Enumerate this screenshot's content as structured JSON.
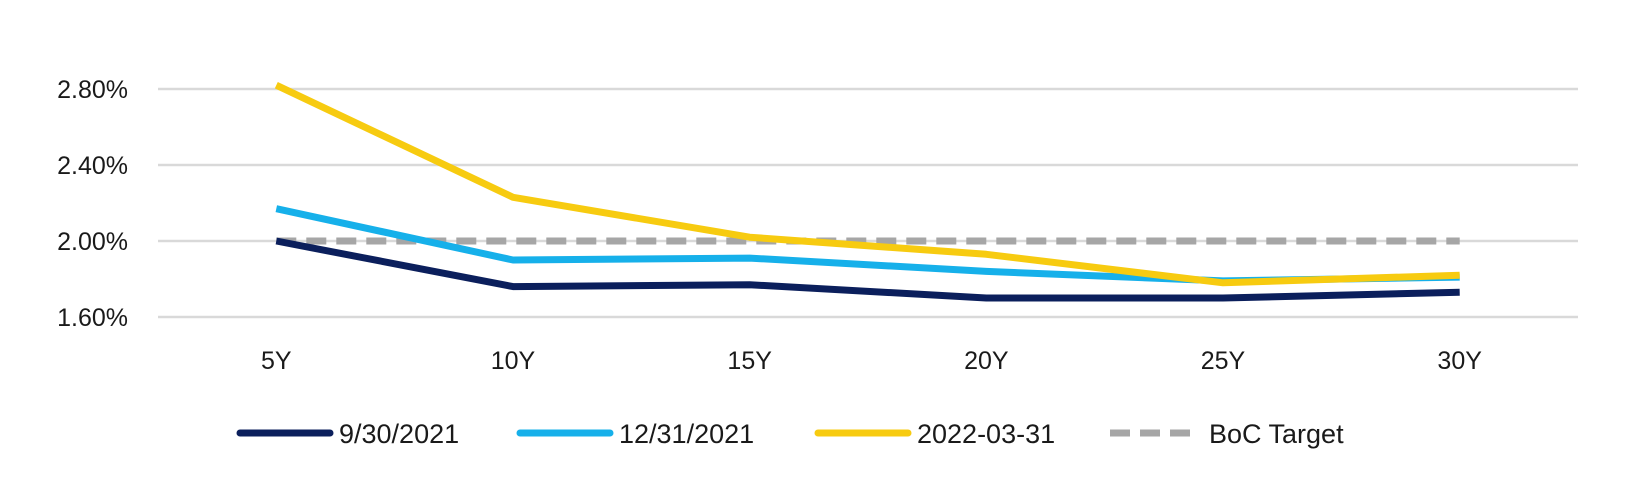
{
  "chart_data": {
    "type": "line",
    "categories": [
      "5Y",
      "10Y",
      "15Y",
      "20Y",
      "25Y",
      "30Y"
    ],
    "y_ticks": [
      "1.60%",
      "2.00%",
      "2.40%",
      "2.80%"
    ],
    "y_tick_values": [
      1.6,
      2.0,
      2.4,
      2.8
    ],
    "ylim": [
      1.6,
      2.8
    ],
    "grid": true,
    "legend_position": "bottom",
    "series": [
      {
        "name": "9/30/2021",
        "color": "#0b1f5c",
        "dashed": false,
        "values": [
          2.0,
          1.76,
          1.77,
          1.7,
          1.7,
          1.73
        ]
      },
      {
        "name": "12/31/2021",
        "color": "#16b0ea",
        "dashed": false,
        "values": [
          2.17,
          1.9,
          1.91,
          1.84,
          1.79,
          1.81
        ]
      },
      {
        "name": "2022-03-31",
        "color": "#f7cb10",
        "dashed": false,
        "values": [
          2.82,
          2.23,
          2.02,
          1.93,
          1.78,
          1.82
        ]
      },
      {
        "name": "BoC Target",
        "color": "#a6a6a6",
        "dashed": true,
        "values": [
          2.0,
          2.0,
          2.0,
          2.0,
          2.0,
          2.0
        ]
      }
    ]
  }
}
